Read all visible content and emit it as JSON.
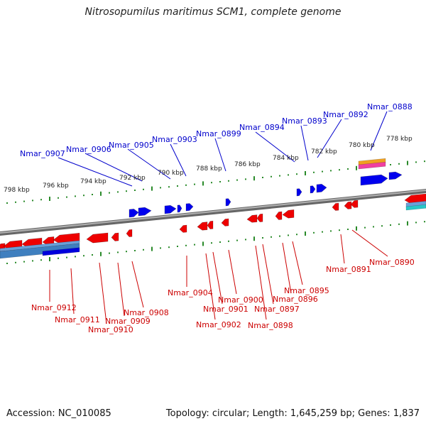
{
  "title": "Nitrosopumilus maritimus SCM1, complete genome",
  "footer": {
    "accession": "Accession: NC_010085",
    "stats": "Topology: circular; Length: 1,645,259 bp; Genes: 1,837"
  },
  "colors": {
    "forward_gene": "#0000ee",
    "reverse_gene": "#ee0000",
    "backbone": "#808080",
    "tick": "#2a8a2a",
    "top_label": "#0000cc",
    "bottom_label": "#cc0000"
  },
  "scale": {
    "unit": "kbp",
    "labels": [
      "798 kbp",
      "796 kbp",
      "794 kbp",
      "792 kbp",
      "790 kbp",
      "788 kbp",
      "786 kbp",
      "784 kbp",
      "782 kbp",
      "780 kbp",
      "778 kbp"
    ]
  },
  "genes_top": [
    "Nmar_0907",
    "Nmar_0906",
    "Nmar_0905",
    "Nmar_0903",
    "Nmar_0899",
    "Nmar_0894",
    "Nmar_0893",
    "Nmar_0892",
    "Nmar_0888"
  ],
  "genes_bottom": [
    "Nmar_0912",
    "Nmar_0911",
    "Nmar_0910",
    "Nmar_0909",
    "Nmar_0908",
    "Nmar_0904",
    "Nmar_0902",
    "Nmar_0901",
    "Nmar_0900",
    "Nmar_0898",
    "Nmar_0897",
    "Nmar_0896",
    "Nmar_0895",
    "Nmar_0891",
    "Nmar_0890"
  ]
}
